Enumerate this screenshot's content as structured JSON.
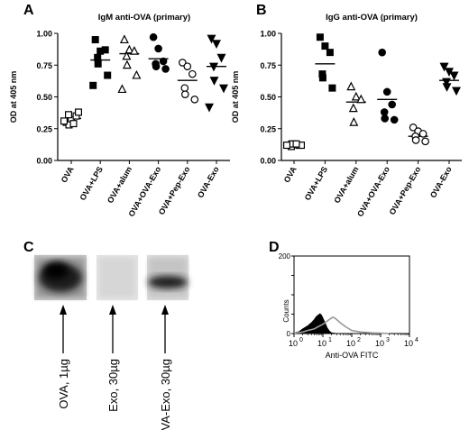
{
  "panels": {
    "a_letter": "A",
    "b_letter": "B",
    "c_letter": "C",
    "d_letter": "D"
  },
  "chart_data": [
    {
      "id": "A",
      "type": "scatter",
      "title": "IgM anti-OVA (primary)",
      "ylabel": "OD at 405 nm",
      "ylim": [
        0,
        1.0
      ],
      "yticks": [
        "0.00",
        "0.25",
        "0.50",
        "0.75",
        "1.00"
      ],
      "categories": [
        "OVA",
        "OVA+LPS",
        "OVA+alum",
        "OVA+OVA-Exo",
        "OVA+Pep-Exo",
        "OVA-Exo"
      ],
      "markers": [
        "square-open",
        "square",
        "triangle-open",
        "circle",
        "circle-open",
        "triangle-down"
      ],
      "means": [
        0.33,
        0.79,
        0.84,
        0.8,
        0.63,
        0.74
      ],
      "points": [
        [
          0.3,
          0.32,
          0.35,
          0.36,
          0.28,
          0.38,
          0.31,
          0.29
        ],
        [
          0.95,
          0.86,
          0.87,
          0.81,
          0.76,
          0.67,
          0.59
        ],
        [
          0.95,
          0.87,
          0.86,
          0.82,
          0.75,
          0.67,
          0.56
        ],
        [
          0.97,
          0.88,
          0.78,
          0.76,
          0.74,
          0.72
        ],
        [
          0.77,
          0.74,
          0.68,
          0.57,
          0.52,
          0.48
        ],
        [
          0.96,
          0.92,
          0.81,
          0.74,
          0.63,
          0.57,
          0.42
        ]
      ]
    },
    {
      "id": "B",
      "type": "scatter",
      "title": "IgG anti-OVA (primary)",
      "ylabel": "OD at 405 nm",
      "ylim": [
        0,
        1.0
      ],
      "yticks": [
        "0.00",
        "0.25",
        "0.50",
        "0.75",
        "1.00"
      ],
      "categories": [
        "OVA",
        "OVA+LPS",
        "OVA+alum",
        "OVA+OVA-Exo",
        "OVA+Pep-Exo",
        "OVA-Exo"
      ],
      "markers": [
        "square-open",
        "square",
        "triangle-open",
        "circle",
        "circle-open",
        "triangle-down"
      ],
      "means": [
        0.12,
        0.76,
        0.46,
        0.48,
        0.19,
        0.63
      ],
      "points": [
        [
          0.12,
          0.13,
          0.12,
          0.11,
          0.13,
          0.12,
          0.12,
          0.13
        ],
        [
          0.97,
          0.9,
          0.85,
          0.68,
          0.65,
          0.57
        ],
        [
          0.58,
          0.5,
          0.48,
          0.41,
          0.3
        ],
        [
          0.85,
          0.54,
          0.44,
          0.38,
          0.33,
          0.32
        ],
        [
          0.26,
          0.23,
          0.21,
          0.19,
          0.16,
          0.15
        ],
        [
          0.74,
          0.7,
          0.67,
          0.62,
          0.58,
          0.55
        ]
      ]
    },
    {
      "id": "C",
      "type": "other",
      "lane_labels": [
        "OVA, 1µg",
        "Exo, 30µg",
        "OVA-Exo, 30µg"
      ]
    },
    {
      "id": "D",
      "type": "area",
      "xlabel": "Anti-OVA FITC",
      "ylabel": "Counts",
      "x_scale": "log",
      "xlim": [
        1,
        10000
      ],
      "ylim": [
        0,
        200
      ],
      "yticks": [
        "0",
        "50",
        "100",
        "150",
        "200"
      ],
      "xticks": [
        {
          "base": "10",
          "exp": "0"
        },
        {
          "base": "10",
          "exp": "1"
        },
        {
          "base": "10",
          "exp": "2"
        },
        {
          "base": "10",
          "exp": "3"
        },
        {
          "base": "10",
          "exp": "4"
        }
      ],
      "series": [
        {
          "fill": "#000000",
          "x": [
            1,
            1.5,
            2,
            3,
            4,
            5,
            6,
            7,
            8,
            9,
            10,
            12,
            14,
            17,
            20,
            30
          ],
          "y": [
            2,
            5,
            12,
            20,
            28,
            36,
            44,
            48,
            51,
            47,
            40,
            27,
            15,
            6,
            2,
            0
          ]
        },
        {
          "stroke": "#999999",
          "x": [
            1,
            2,
            3,
            5,
            7,
            10,
            14,
            18,
            22,
            26,
            30,
            40,
            60,
            100,
            200,
            500,
            1000,
            2000
          ],
          "y": [
            1,
            4,
            8,
            12,
            18,
            24,
            32,
            38,
            42,
            40,
            36,
            28,
            18,
            8,
            4,
            2,
            1,
            0
          ]
        }
      ]
    }
  ]
}
